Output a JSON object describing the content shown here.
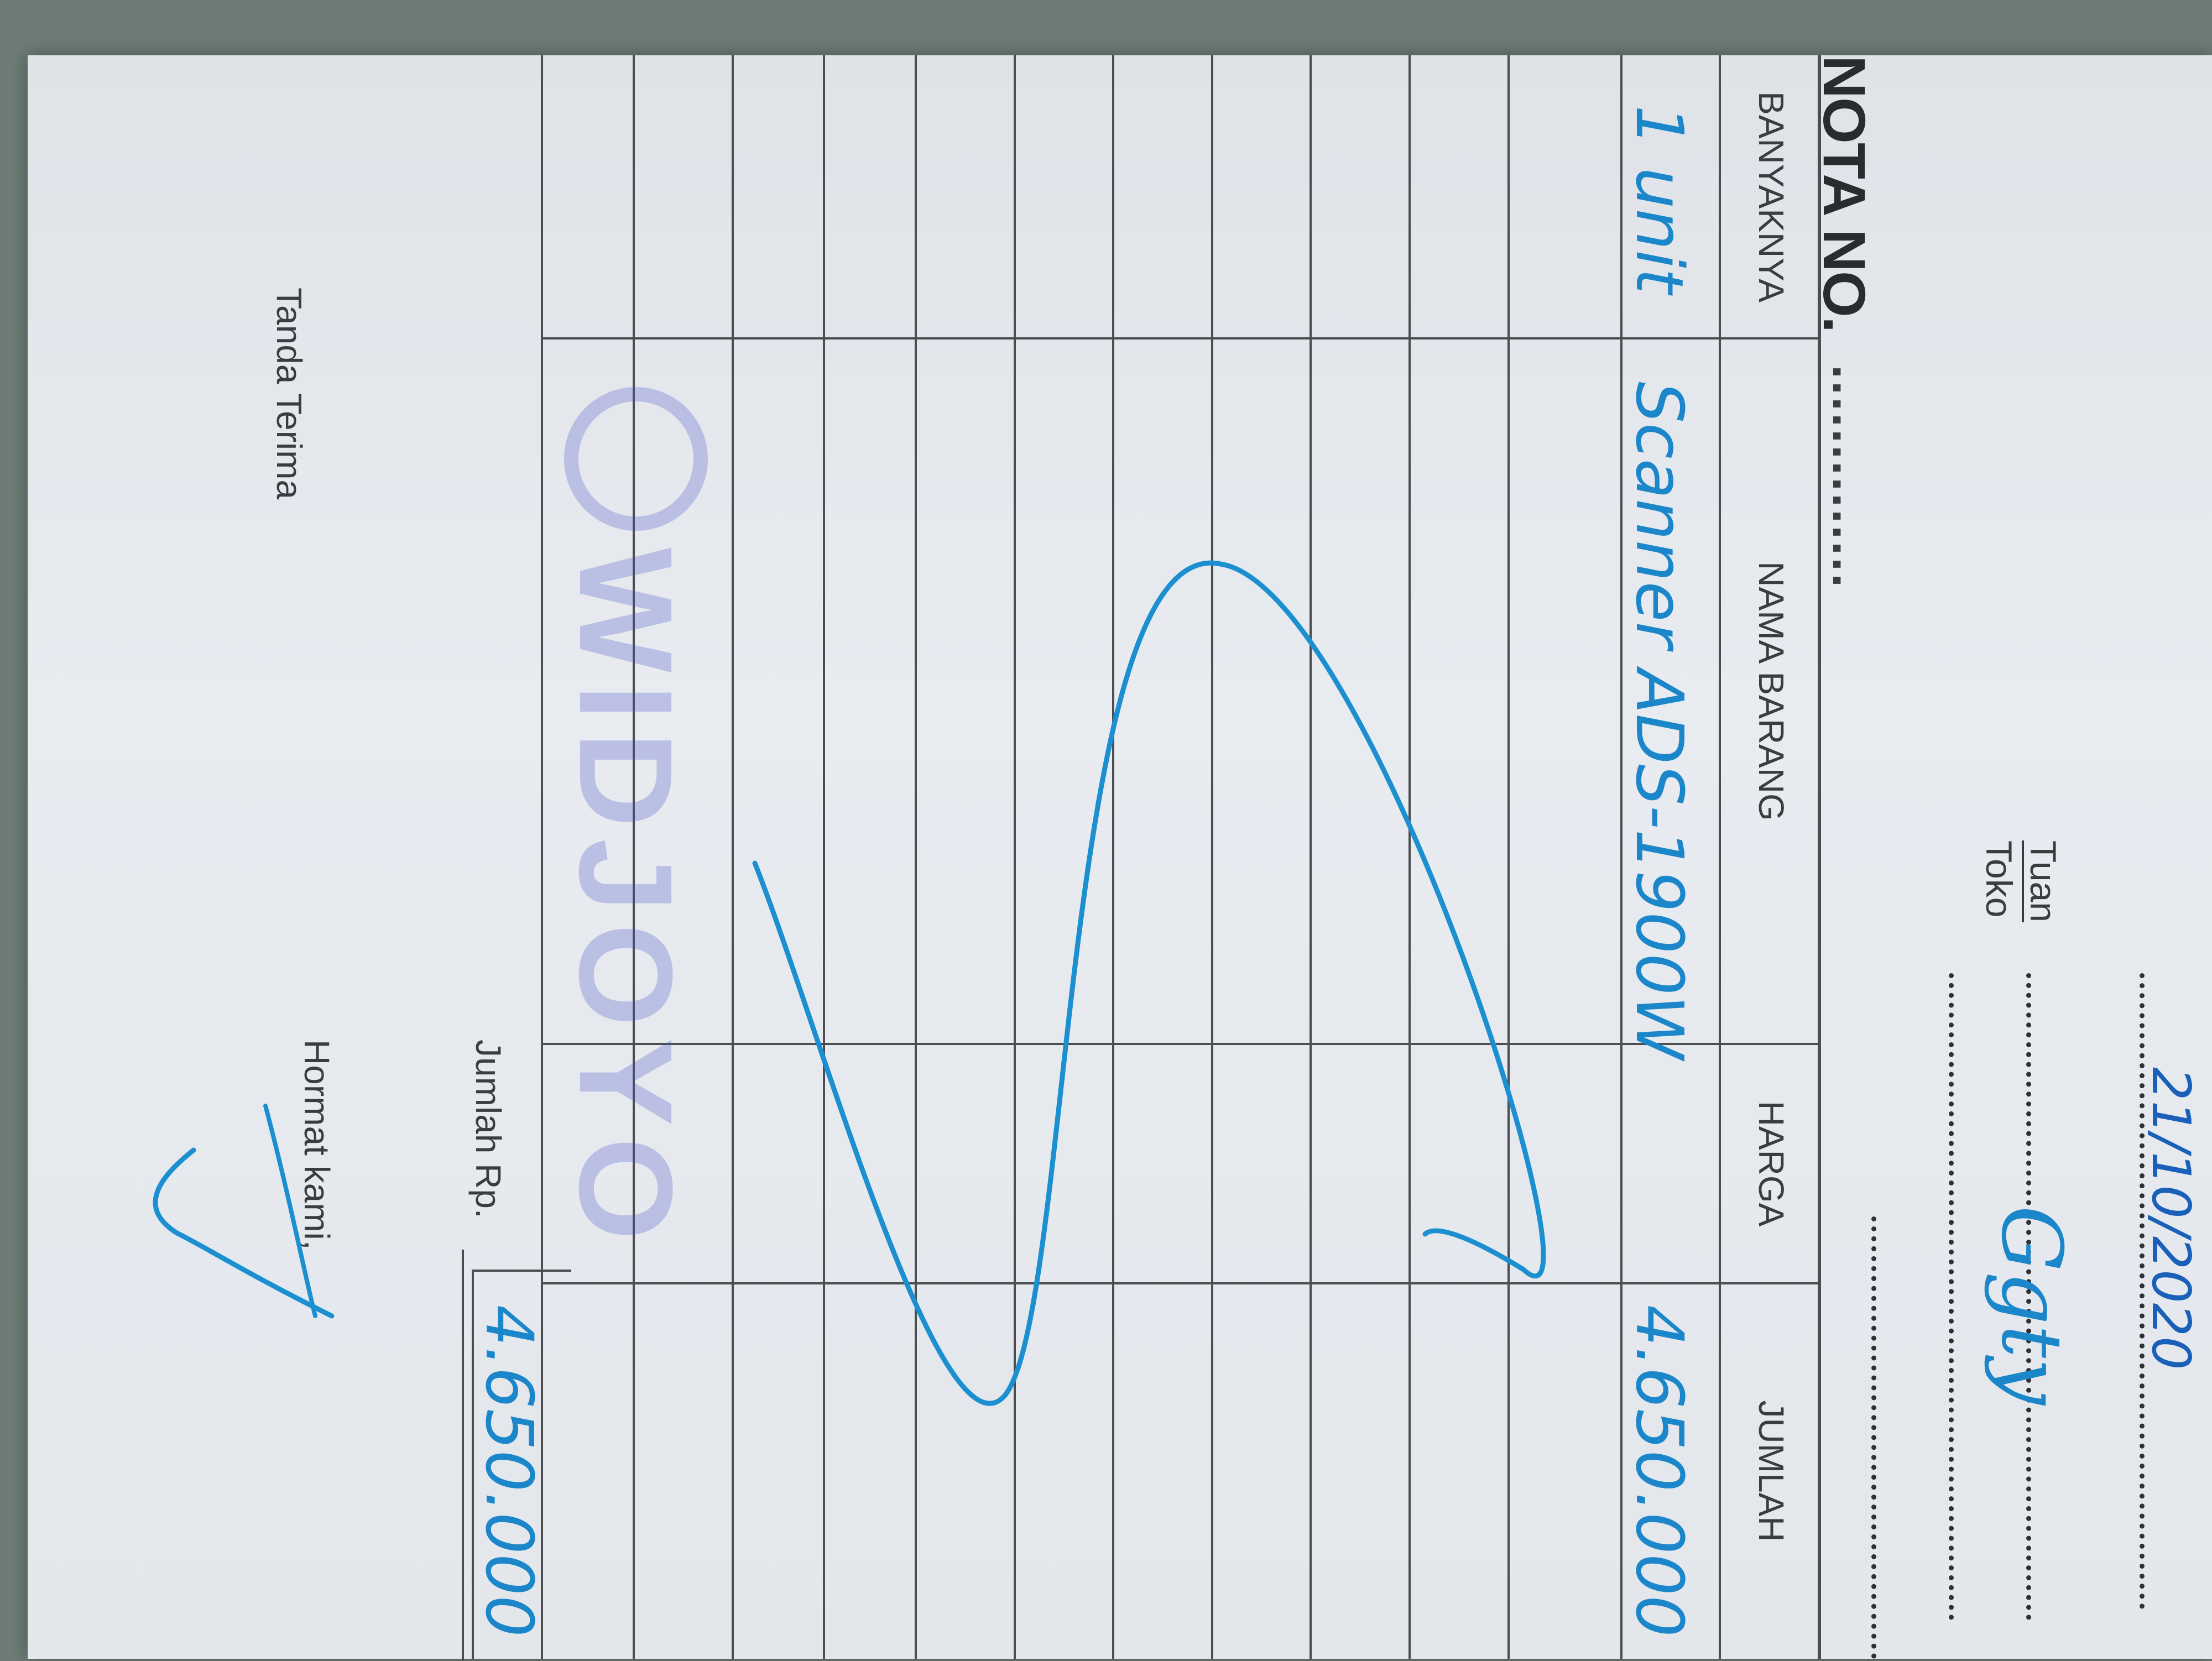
{
  "header": {
    "title": "NOTA NO.",
    "title_dots": "..............",
    "date_handwritten": "21/10/2020",
    "tuan_label": "Tuan",
    "toko_label": "Toko",
    "customer_signature": "Ggty"
  },
  "table": {
    "columns": [
      "BANYAKNYA",
      "NAMA BARANG",
      "HARGA",
      "JUMLAH"
    ],
    "rows": [
      {
        "banyaknya": "1 unit",
        "nama_barang": "Scanner ADS-1900W",
        "harga": "",
        "jumlah": "4.650.000"
      }
    ],
    "total_label": "Jumlah Rp.",
    "total_value": "4.650.000"
  },
  "footer": {
    "receiver_label": "Tanda Terima",
    "sender_label": "Hormat kami,"
  },
  "stamp": {
    "text": "WIDJOYO"
  },
  "colors": {
    "ink": "#1b86c9",
    "print": "#3a3c40",
    "paper": "#e6e9ee"
  }
}
